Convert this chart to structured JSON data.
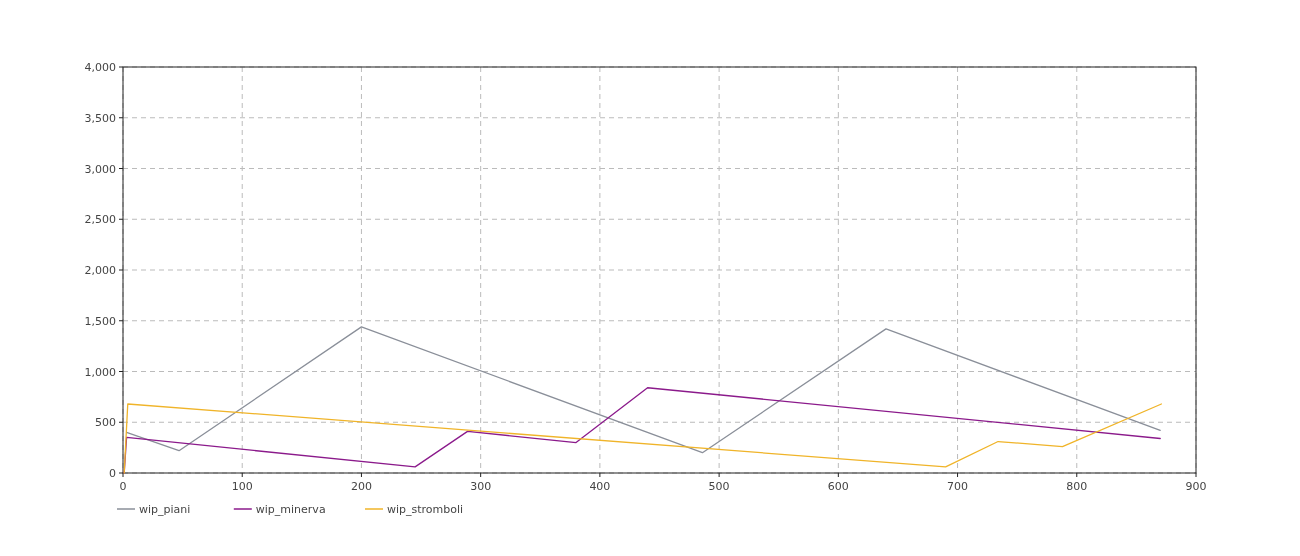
{
  "chart_data": {
    "type": "line",
    "xlim": [
      0,
      900
    ],
    "ylim": [
      0,
      4000
    ],
    "xticks": [
      0,
      100,
      200,
      300,
      400,
      500,
      600,
      700,
      800,
      900
    ],
    "yticks": [
      {
        "value": 0,
        "label": "0"
      },
      {
        "value": 500,
        "label": "500"
      },
      {
        "value": 1000,
        "label": "1,000"
      },
      {
        "value": 1500,
        "label": "1,500"
      },
      {
        "value": 2000,
        "label": "2,000"
      },
      {
        "value": 2500,
        "label": "2,500"
      },
      {
        "value": 3000,
        "label": "3,000"
      },
      {
        "value": 3500,
        "label": "3,500"
      },
      {
        "value": 4000,
        "label": "4,000"
      }
    ],
    "grid": true,
    "legend": "bottom left",
    "line_style": "solid",
    "marker": "none",
    "series": [
      {
        "name": "wip_piani",
        "color": "#8a8f99",
        "x": [
          3,
          47,
          200,
          486,
          640,
          870
        ],
        "values": [
          400,
          220,
          1440,
          200,
          1420,
          420
        ]
      },
      {
        "name": "wip_minerva",
        "color": "#8b1a8b",
        "x": [
          1,
          3,
          245,
          289,
          380,
          440,
          870
        ],
        "values": [
          0,
          350,
          60,
          410,
          300,
          840,
          340
        ]
      },
      {
        "name": "wip_stromboli",
        "color": "#f0b429",
        "x": [
          1,
          4,
          690,
          734,
          788,
          871
        ],
        "values": [
          0,
          680,
          60,
          310,
          260,
          680
        ]
      }
    ]
  }
}
